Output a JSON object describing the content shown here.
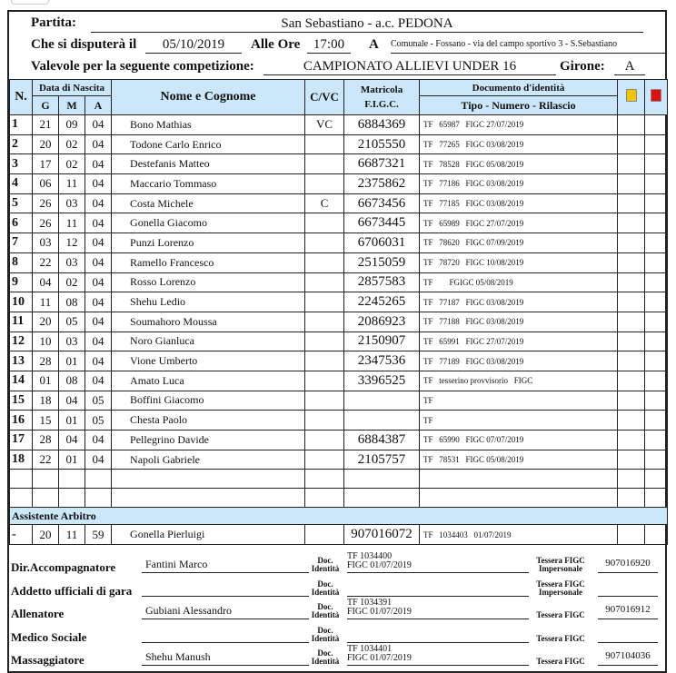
{
  "header": {
    "partita_label": "Partita:",
    "partita": "San Sebastiano - a.c. PEDONA",
    "data_label": "Che si disputerà il",
    "data": "05/10/2019",
    "ore_label": "Alle Ore",
    "ore": "17:00",
    "a_label": "A",
    "luogo": "Comunale - Fossano - via del campo sportivo 3 - S.Sebastiano",
    "competizione_label": "Valevole per la seguente competizione:",
    "competizione": "CAMPIONATO ALLIEVI UNDER 16",
    "girone_label": "Girone:",
    "girone": "A"
  },
  "table": {
    "col_n": "N.",
    "col_data": "Data di Nascita",
    "col_g": "G",
    "col_m": "M",
    "col_a": "A",
    "col_nome": "Nome e Cognome",
    "col_cvc": "C/VC",
    "col_matricola": "Matricola F.I.G.C.",
    "col_doc": "Documento d'identità",
    "col_doc_sub": "Tipo - Numero - Rilascio",
    "yellow_color": "#f5c400",
    "red_color": "#e01010",
    "rows": [
      {
        "n": "1",
        "g": "21",
        "m": "09",
        "a": "04",
        "nome": "Bono Mathias",
        "cvc": "VC",
        "mat": "6884369",
        "doc": "TF   65987   FIGC 27/07/2019"
      },
      {
        "n": "2",
        "g": "20",
        "m": "02",
        "a": "04",
        "nome": "Todone Carlo Enrico",
        "cvc": "",
        "mat": "2105550",
        "doc": "TF   77265   FIGC 03/08/2019"
      },
      {
        "n": "3",
        "g": "17",
        "m": "02",
        "a": "04",
        "nome": "Destefanis Matteo",
        "cvc": "",
        "mat": "6687321",
        "doc": "TF   78528   FIGC 05/08/2019"
      },
      {
        "n": "4",
        "g": "06",
        "m": "11",
        "a": "04",
        "nome": "Maccario Tommaso",
        "cvc": "",
        "mat": "2375862",
        "doc": "TF   77186   FIGC 03/08/2019"
      },
      {
        "n": "5",
        "g": "26",
        "m": "03",
        "a": "04",
        "nome": "Costa Michele",
        "cvc": "C",
        "mat": "6673456",
        "doc": "TF   77185   FIGC 03/08/2019"
      },
      {
        "n": "6",
        "g": "26",
        "m": "11",
        "a": "04",
        "nome": "Gonella Giacomo",
        "cvc": "",
        "mat": "6673445",
        "doc": "TF   65989   FIGC 27/07/2019"
      },
      {
        "n": "7",
        "g": "03",
        "m": "12",
        "a": "04",
        "nome": "Punzi Lorenzo",
        "cvc": "",
        "mat": "6706031",
        "doc": "TF   78620   FIGC 07/09/2019"
      },
      {
        "n": "8",
        "g": "22",
        "m": "03",
        "a": "04",
        "nome": "Ramello Francesco",
        "cvc": "",
        "mat": "2515059",
        "doc": "TF   78720   FIGC 10/08/2019"
      },
      {
        "n": "9",
        "g": "04",
        "m": "02",
        "a": "04",
        "nome": "Rosso Lorenzo",
        "cvc": "",
        "mat": "2857583",
        "doc": "TF        FGIGC 05/08/2019"
      },
      {
        "n": "10",
        "g": "11",
        "m": "08",
        "a": "04",
        "nome": "Shehu Ledio",
        "cvc": "",
        "mat": "2245265",
        "doc": "TF   77187   FIGC 03/08/2019"
      },
      {
        "n": "11",
        "g": "20",
        "m": "05",
        "a": "04",
        "nome": "Soumahoro Moussa",
        "cvc": "",
        "mat": "2086923",
        "doc": "TF   77188   FIGC 03/08/2019"
      },
      {
        "n": "12",
        "g": "10",
        "m": "03",
        "a": "04",
        "nome": "Noro Gianluca",
        "cvc": "",
        "mat": "2150907",
        "doc": "TF   65991   FIGC 27/07/2019"
      },
      {
        "n": "13",
        "g": "28",
        "m": "01",
        "a": "04",
        "nome": "Vione Umberto",
        "cvc": "",
        "mat": "2347536",
        "doc": "TF   77189   FIGC 03/08/2019"
      },
      {
        "n": "14",
        "g": "01",
        "m": "08",
        "a": "04",
        "nome": "Amato Luca",
        "cvc": "",
        "mat": "3396525",
        "doc": "TF   tesserino provvisorio   FIGC"
      },
      {
        "n": "15",
        "g": "18",
        "m": "04",
        "a": "05",
        "nome": "Boffini Giacomo",
        "cvc": "",
        "mat": "",
        "doc": "TF"
      },
      {
        "n": "16",
        "g": "15",
        "m": "01",
        "a": "05",
        "nome": "Chesta Paolo",
        "cvc": "",
        "mat": "",
        "doc": "TF"
      },
      {
        "n": "17",
        "g": "28",
        "m": "04",
        "a": "04",
        "nome": "Pellegrino Davide",
        "cvc": "",
        "mat": "6884387",
        "doc": "TF   65990   FIGC 07/07/2019"
      },
      {
        "n": "18",
        "g": "22",
        "m": "01",
        "a": "04",
        "nome": "Napoli Gabriele",
        "cvc": "",
        "mat": "2105757",
        "doc": "TF   78531   FIGC 05/08/2019"
      }
    ],
    "assistente_label": "Assistente Arbitro",
    "assistente": {
      "n": "-",
      "g": "20",
      "m": "11",
      "a": "59",
      "nome": "Gonella Pierluigi",
      "mat": "907016072",
      "doc": "TF   1034403   01/07/2019"
    }
  },
  "staff": {
    "doc_label": "Doc. Identità",
    "items": [
      {
        "role": "Dir.Accompagnatore",
        "name": "Fantini Marco",
        "doc1": "TF   1034400",
        "doc2": "FIGC 01/07/2019",
        "tessera_label": "Tessera FIGC Impersonale",
        "tessera": "907016920"
      },
      {
        "role": "Addetto ufficiali di gara",
        "name": "",
        "doc1": "",
        "doc2": "",
        "tessera_label": "Tessera FIGC Impersonale",
        "tessera": ""
      },
      {
        "role": "Allenatore",
        "name": "Gubiani Alessandro",
        "doc1": "TF   1034391",
        "doc2": "FIGC 01/07/2019",
        "tessera_label": "Tessera FIGC",
        "tessera": "907016912"
      },
      {
        "role": "Medico Sociale",
        "name": "",
        "doc1": "",
        "doc2": "",
        "tessera_label": "Tessera FIGC",
        "tessera": ""
      },
      {
        "role": "Massaggiatore",
        "name": "Shehu Manush",
        "doc1": "TF   1034401",
        "doc2": "FIGC 01/07/2019",
        "tessera_label": "Tessera FIGC",
        "tessera": "907104036"
      }
    ]
  }
}
